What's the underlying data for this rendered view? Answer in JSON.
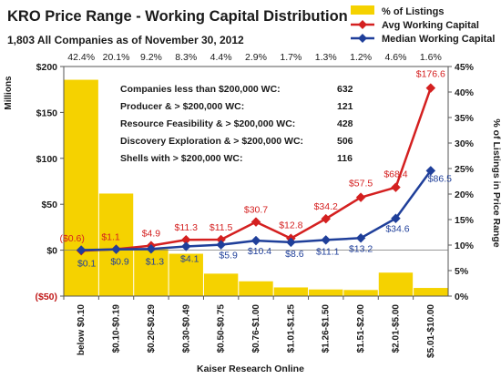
{
  "chart_data": {
    "type": "bar",
    "title": "KRO Price Range - Working Capital Distribution",
    "subtitle": "1,803  All Companies as of  November 30, 2012",
    "xlabel": "Kaiser Research Online",
    "ylabel": "Millions",
    "y2label": "% of Listings in Price Range",
    "ylim": [
      -50,
      200
    ],
    "yticks": [
      "($50)",
      "$0",
      "$50",
      "$100",
      "$150",
      "$200"
    ],
    "y2lim": [
      0,
      45
    ],
    "y2ticks": [
      "0%",
      "5%",
      "10%",
      "15%",
      "20%",
      "25%",
      "30%",
      "35%",
      "40%",
      "45%"
    ],
    "categories": [
      "below $0.10",
      "$0.10-$0.19",
      "$0.20-$0.29",
      "$0.30-$0.49",
      "$0.50-$0.75",
      "$0.76-$1.00",
      "$1.01-$1.25",
      "$1.26-$1.50",
      "$1.51-$2.00",
      "$2.01-$5.00",
      "$5.01-$10.00"
    ],
    "top_labels": [
      "42.4%",
      "20.1%",
      "9.2%",
      "8.3%",
      "4.4%",
      "2.9%",
      "1.7%",
      "1.3%",
      "1.2%",
      "4.6%",
      "1.6%"
    ],
    "grid": false,
    "legend_position": "top-right",
    "series": [
      {
        "name": "% of Listings",
        "type": "bar",
        "axis": "right",
        "color": "#f5d200",
        "values": [
          42.4,
          20.1,
          9.2,
          8.3,
          4.4,
          2.9,
          1.7,
          1.3,
          1.2,
          4.6,
          1.6
        ]
      },
      {
        "name": "Avg Working Capital",
        "type": "line",
        "axis": "left",
        "color": "#d42020",
        "values": [
          -0.6,
          1.1,
          4.9,
          11.3,
          11.5,
          30.7,
          12.8,
          34.2,
          57.5,
          68.4,
          176.6
        ],
        "labels": [
          "($0.6)",
          "$1.1",
          "$4.9",
          "$11.3",
          "$11.5",
          "$30.7",
          "$12.8",
          "$34.2",
          "$57.5",
          "$68.4",
          "$176.6"
        ]
      },
      {
        "name": "Median Working Capital",
        "type": "line",
        "axis": "left",
        "color": "#1f3f9a",
        "values": [
          0.1,
          0.9,
          1.3,
          4.1,
          5.9,
          10.4,
          8.6,
          11.1,
          13.2,
          34.6,
          86.5
        ],
        "labels": [
          "$0.1",
          "$0.9",
          "$1.3",
          "$4.1",
          "$5.9",
          "$10.4",
          "$8.6",
          "$11.1",
          "$13.2",
          "$34.6",
          "$86.5"
        ]
      }
    ],
    "info_table": [
      {
        "label": "Companies less than $200,000 WC:",
        "value": "632"
      },
      {
        "label": "Producer & > $200,000 WC:",
        "value": "121"
      },
      {
        "label": "Resource Feasibility & > $200,000 WC:",
        "value": "428"
      },
      {
        "label": "Discovery Exploration & > $200,000 WC:",
        "value": "506"
      },
      {
        "label": "Shells with > $200,000 WC:",
        "value": "116"
      }
    ]
  }
}
